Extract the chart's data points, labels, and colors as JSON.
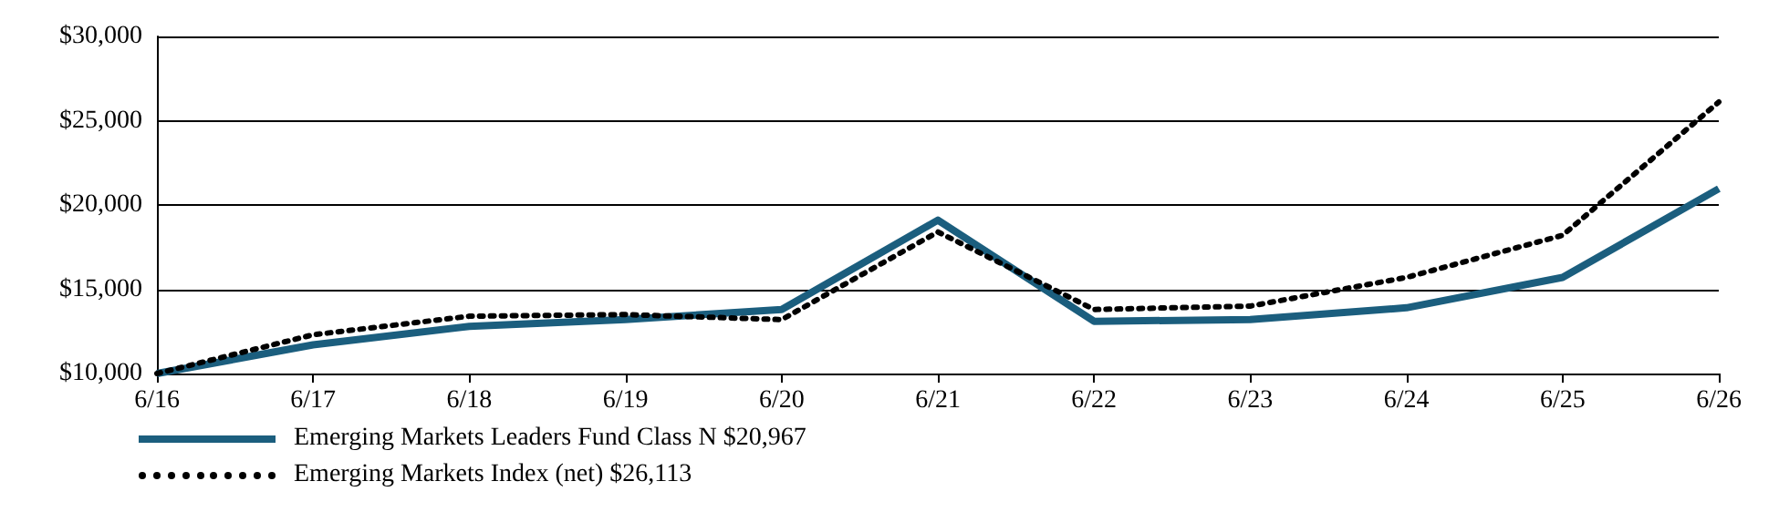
{
  "chart_data": {
    "type": "line",
    "categories": [
      "6/16",
      "6/17",
      "6/18",
      "6/19",
      "6/20",
      "6/21",
      "6/22",
      "6/23",
      "6/24",
      "6/25",
      "6/26"
    ],
    "series": [
      {
        "name": "Emerging Markets Leaders Fund Class N $20,967",
        "color": "#1b5e7e",
        "line_style": "solid",
        "values": [
          10000,
          11700,
          12800,
          13200,
          13800,
          19100,
          13100,
          13200,
          13900,
          15700,
          20967
        ]
      },
      {
        "name": "Emerging Markets Index (net) $26,113",
        "color": "#000000",
        "line_style": "dotted",
        "values": [
          10000,
          12300,
          13400,
          13500,
          13200,
          18400,
          13800,
          14000,
          15700,
          18200,
          26113
        ]
      }
    ],
    "ylim": [
      10000,
      30000
    ],
    "yticks": [
      {
        "value": 10000,
        "label": "$10,000"
      },
      {
        "value": 15000,
        "label": "$15,000"
      },
      {
        "value": 20000,
        "label": "$20,000"
      },
      {
        "value": 25000,
        "label": "$25,000"
      },
      {
        "value": 30000,
        "label": "$30,000"
      }
    ],
    "grid": "y",
    "legend": "bottom left",
    "marker": "none"
  }
}
